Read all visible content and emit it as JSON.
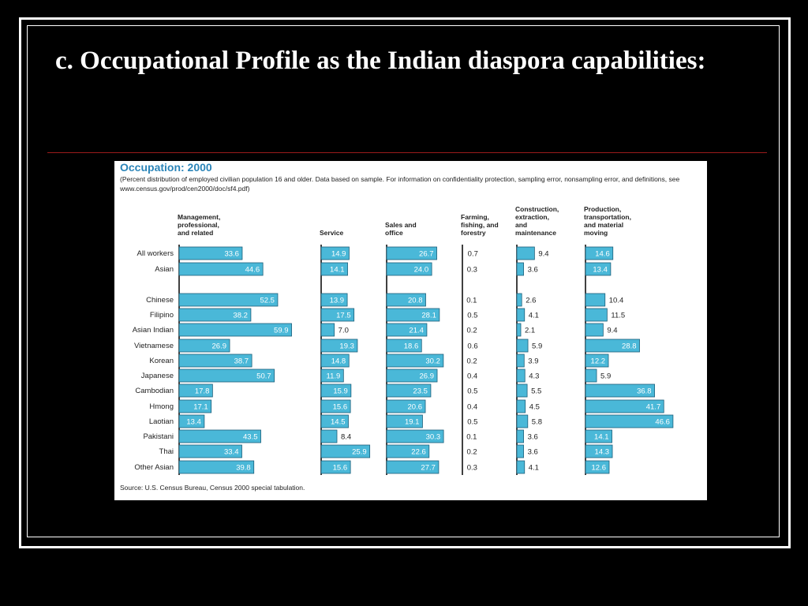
{
  "slide": {
    "title": "c. Occupational Profile as the Indian diaspora capabilities:"
  },
  "figure": {
    "title": "Occupation: 2000",
    "subtitle": "(Percent distribution of employed civilian population 16 and older. Data based on sample. For information on confidentiality protection, sampling error, nonsampling error, and definitions, see www.census.gov/prod/cen2000/doc/sf4.pdf)",
    "source": "Source: U.S. Census Bureau, Census 2000 special tabulation."
  },
  "chart_data": {
    "type": "bar",
    "orientation": "horizontal",
    "bar_color": "#4ab8d8",
    "categories": [
      "All workers",
      "Asian",
      "Chinese",
      "Filipino",
      "Asian Indian",
      "Vietnamese",
      "Korean",
      "Japanese",
      "Cambodian",
      "Hmong",
      "Laotian",
      "Pakistani",
      "Thai",
      "Other Asian"
    ],
    "series": [
      {
        "name": "Management, professional, and related",
        "values": [
          33.6,
          44.6,
          52.5,
          38.2,
          59.9,
          26.9,
          38.7,
          50.7,
          17.8,
          17.1,
          13.4,
          43.5,
          33.4,
          39.8
        ]
      },
      {
        "name": "Service",
        "values": [
          14.9,
          14.1,
          13.9,
          17.5,
          7.0,
          19.3,
          14.8,
          11.9,
          15.9,
          15.6,
          14.5,
          8.4,
          25.9,
          15.6
        ]
      },
      {
        "name": "Sales and office",
        "values": [
          26.7,
          24.0,
          20.8,
          28.1,
          21.4,
          18.6,
          30.2,
          26.9,
          23.5,
          20.6,
          19.1,
          30.3,
          22.6,
          27.7
        ]
      },
      {
        "name": "Farming, fishing, and forestry",
        "values": [
          0.7,
          0.3,
          0.1,
          0.5,
          0.2,
          0.6,
          0.2,
          0.4,
          0.5,
          0.4,
          0.5,
          0.1,
          0.2,
          0.3
        ]
      },
      {
        "name": "Construction, extraction, and maintenance",
        "values": [
          9.4,
          3.6,
          2.6,
          4.1,
          2.1,
          5.9,
          3.9,
          4.3,
          5.5,
          4.5,
          5.8,
          3.6,
          3.6,
          4.1
        ]
      },
      {
        "name": "Production, transportation, and material moving",
        "values": [
          14.6,
          13.4,
          10.4,
          11.5,
          9.4,
          28.8,
          12.2,
          5.9,
          36.8,
          41.7,
          46.6,
          14.1,
          14.3,
          12.6
        ]
      }
    ]
  }
}
